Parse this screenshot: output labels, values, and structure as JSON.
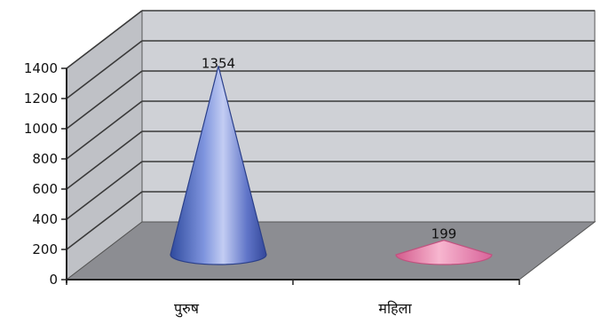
{
  "chart_data": {
    "type": "bar",
    "style": "3d-cone",
    "categories": [
      "पुरुष",
      "महिला"
    ],
    "values": [
      1354,
      199
    ],
    "data_labels": [
      "1354",
      "199"
    ],
    "ylim": [
      0,
      1400
    ],
    "yticks": [
      "0",
      "200",
      "400",
      "600",
      "800",
      "1000",
      "1200",
      "1400"
    ],
    "title": "",
    "xlabel": "",
    "ylabel": "",
    "grid": true,
    "legend": "none",
    "colors": {
      "series": [
        "#5b74c8",
        "#ec89b1"
      ],
      "back_wall": "#cfd1d6",
      "side_wall": "#bfc1c6",
      "floor": "#8c8d92",
      "gridline": "#3a3a3a"
    }
  }
}
